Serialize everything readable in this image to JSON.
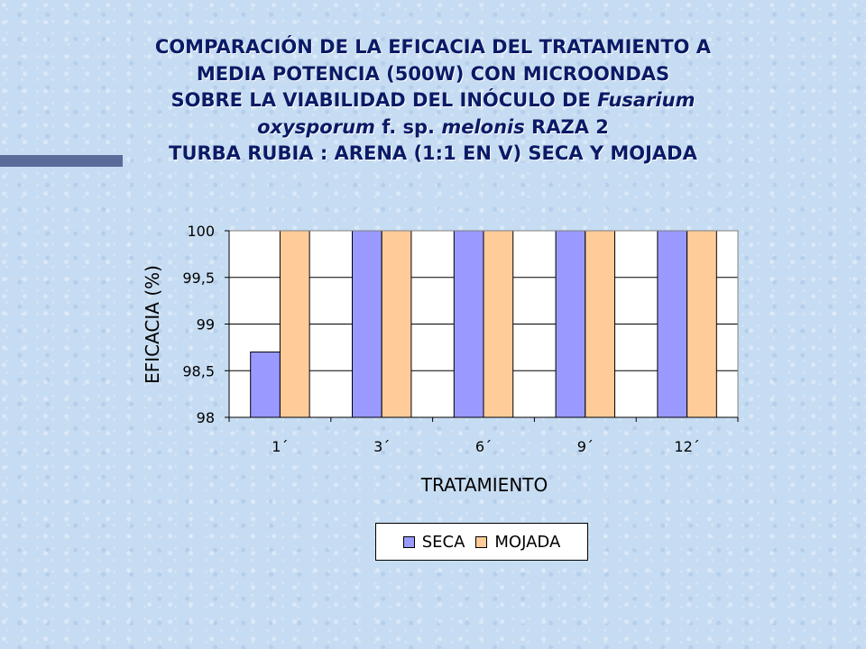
{
  "title": {
    "line1": "COMPARACIÓN DE LA EFICACIA DEL TRATAMIENTO A",
    "line2": "MEDIA POTENCIA (500W) CON MICROONDAS",
    "line3_pre": "SOBRE LA VIABILIDAD DEL INÓCULO DE ",
    "line3_italic": "Fusarium",
    "line4_italic1": "oxysporum",
    "line4_mid": " f. sp. ",
    "line4_italic2": "melonis",
    "line4_post": " RAZA 2",
    "line5": "TURBA RUBIA : ARENA (1:1 EN V) SECA Y MOJADA"
  },
  "colors": {
    "accent_bar": "#5a6b9a",
    "title_text": "#0a1a66",
    "background": "#c6dcf2"
  },
  "chart_data": {
    "type": "bar",
    "categories": [
      "1´",
      "3´",
      "6´",
      "9´",
      "12´"
    ],
    "series": [
      {
        "name": "SECA",
        "color": "#9999ff",
        "values": [
          98.7,
          100,
          100,
          100,
          100
        ]
      },
      {
        "name": "MOJADA",
        "color": "#ffcc99",
        "values": [
          100,
          100,
          100,
          100,
          100
        ]
      }
    ],
    "xlabel": "TRATAMIENTO",
    "ylabel": "EFICACIA (%)",
    "ylim": [
      98,
      100
    ],
    "yticks": [
      98,
      98.5,
      99,
      99.5,
      100
    ],
    "ytick_labels": [
      "98",
      "98,5",
      "99",
      "99,5",
      "100"
    ],
    "grid": true,
    "legend": "bottom"
  }
}
